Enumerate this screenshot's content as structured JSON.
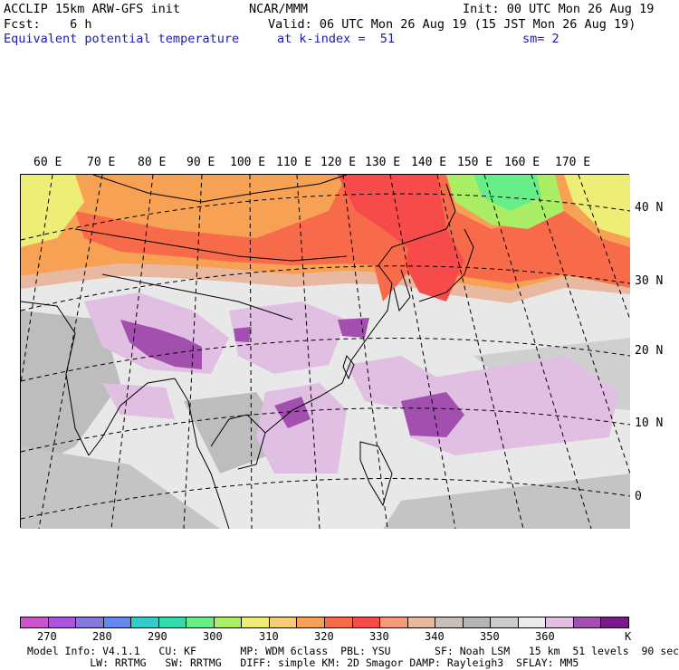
{
  "header": {
    "line1_left": "ACCLIP 15km ARW-GFS init",
    "line1_center": "NCAR/MMM",
    "line1_right": "Init: 00 UTC Mon 26 Aug 19",
    "line2_left": "Fcst:    6 h",
    "line2_right": "Valid: 06 UTC Mon 26 Aug 19 (15 JST Mon 26 Aug 19)",
    "line3_left": "Equivalent potential temperature",
    "line3_center": "at k-index =  51",
    "line3_right": "sm= 2"
  },
  "lon_labels": [
    "60 E",
    "70 E",
    "80 E",
    "90 E",
    "100 E",
    "110 E",
    "120 E",
    "130 E",
    "140 E",
    "150 E",
    "160 E",
    "170 E"
  ],
  "lat_labels": [
    "40 N",
    "30 N",
    "20 N",
    "10 N",
    "0"
  ],
  "colorbar": {
    "colors": [
      "#cc55cc",
      "#aa55dd",
      "#8877dd",
      "#6688ee",
      "#33cccc",
      "#33ddaa",
      "#66ee88",
      "#aaee66",
      "#eeee77",
      "#f7cc77",
      "#f7a155",
      "#f76a4a",
      "#f74a4a",
      "#f7997a",
      "#e8b8a0",
      "#c8c0b8",
      "#b4b4b4",
      "#cccccc",
      "#ececec",
      "#e0bfe2",
      "#a34fb0",
      "#7a1a8a"
    ],
    "ticks": [
      "270",
      "280",
      "290",
      "300",
      "310",
      "320",
      "330",
      "340",
      "350",
      "360"
    ],
    "unit": "K"
  },
  "footer": {
    "line1": "Model Info: V4.1.1   CU: KF       MP: WDM 6class  PBL: YSU       SF: Noah LSM   15 km  51 levels  90 sec",
    "line2": "          LW: RRTMG   SW: RRTMG   DIFF: simple KM: 2D Smagor DAMP: Rayleigh3  SFLAY: MM5"
  }
}
